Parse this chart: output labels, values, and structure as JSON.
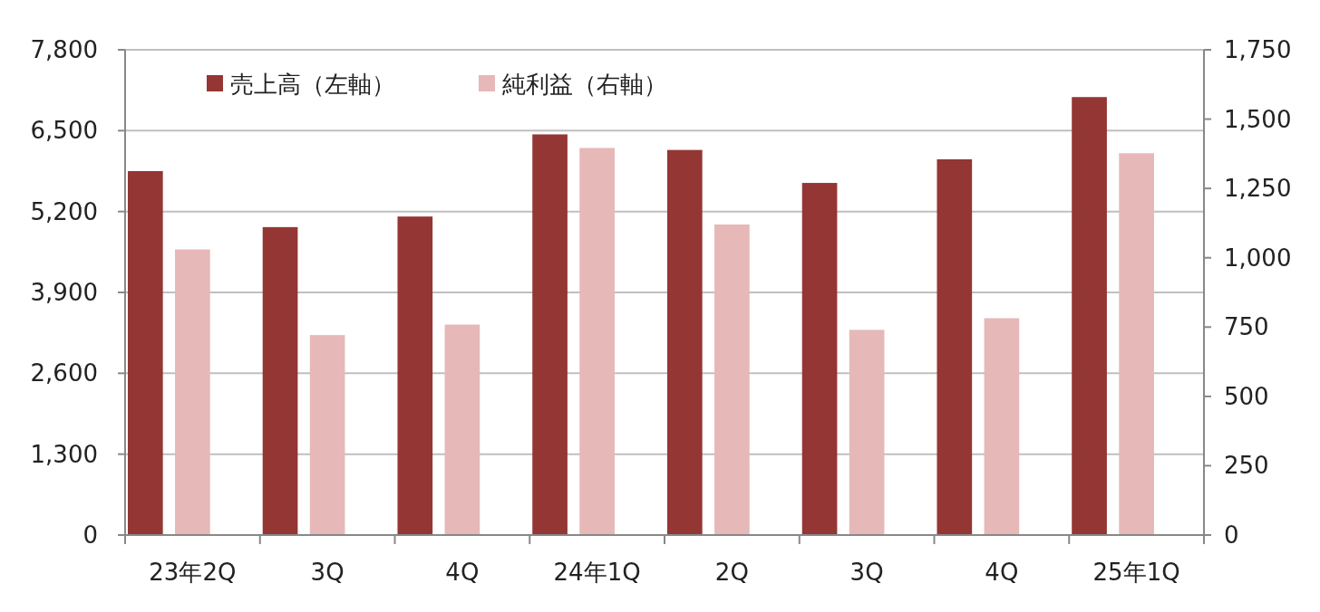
{
  "chart_data": {
    "type": "bar",
    "categories": [
      "23年2Q",
      "3Q",
      "4Q",
      "24年1Q",
      "2Q",
      "3Q",
      "4Q",
      "25年1Q"
    ],
    "series": [
      {
        "name": "売上高（左軸）",
        "color": "#943634",
        "values": [
          5850,
          4950,
          5120,
          6440,
          6190,
          5660,
          6040,
          7040
        ]
      },
      {
        "name": "純利益（右軸）",
        "color": "#e6b8b7",
        "axis": "y2",
        "values": [
          1030,
          721,
          759,
          1396,
          1120,
          740,
          782,
          1377
        ]
      }
    ],
    "ylim": [
      0,
      7800
    ],
    "yticks": [
      0,
      {
        "value": 1300,
        "label": "1,300"
      },
      {
        "value": 2600,
        "label": "2,600"
      },
      {
        "value": 3900,
        "label": "3,900"
      },
      {
        "value": 5200,
        "label": "5,200"
      },
      {
        "value": 6500,
        "label": "6,500"
      },
      {
        "value": 7800,
        "label": "7,800"
      }
    ],
    "y2lim": [
      0,
      1750
    ],
    "y2ticks": [
      0,
      250,
      500,
      750,
      {
        "value": 1000,
        "label": "1,000"
      },
      {
        "value": 1250,
        "label": "1,250"
      },
      {
        "value": 1500,
        "label": "1,500"
      },
      {
        "value": 1750,
        "label": "1,750"
      }
    ],
    "grid": "y",
    "legend": "top left"
  }
}
